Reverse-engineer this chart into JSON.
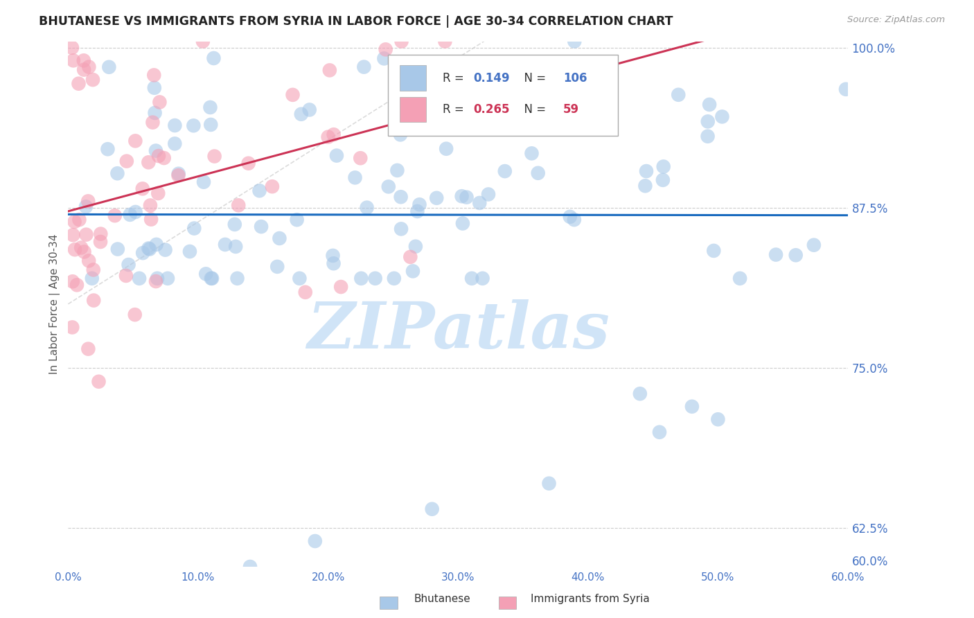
{
  "title": "BHUTANESE VS IMMIGRANTS FROM SYRIA IN LABOR FORCE | AGE 30-34 CORRELATION CHART",
  "source": "Source: ZipAtlas.com",
  "ylabel": "In Labor Force | Age 30-34",
  "legend_label1": "Bhutanese",
  "legend_label2": "Immigrants from Syria",
  "R1": 0.149,
  "N1": 106,
  "R2": 0.265,
  "N2": 59,
  "xlim": [
    0.0,
    0.6
  ],
  "ylim": [
    0.595,
    1.005
  ],
  "yticks": [
    0.625,
    0.75,
    0.875,
    1.0
  ],
  "xticks": [
    0.0,
    0.1,
    0.2,
    0.3,
    0.4,
    0.5,
    0.6
  ],
  "color_blue": "#a8c8e8",
  "color_pink": "#f4a0b5",
  "trendline_blue": "#1a6bbf",
  "trendline_pink": "#cc3355",
  "ref_line_color": "#cccccc",
  "watermark": "ZIPatlas",
  "watermark_color": "#d0e4f7",
  "grid_color": "#cccccc"
}
